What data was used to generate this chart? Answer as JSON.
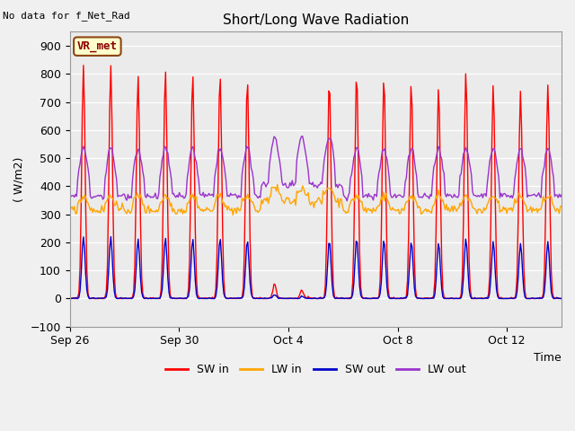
{
  "title": "Short/Long Wave Radiation",
  "ylabel": "( W/m2)",
  "xlabel": "Time",
  "top_label": "No data for f_Net_Rad",
  "station_label": "VR_met",
  "ylim": [
    -100,
    950
  ],
  "yticks": [
    -100,
    0,
    100,
    200,
    300,
    400,
    500,
    600,
    700,
    800,
    900
  ],
  "fig_bg_color": "#f0f0f0",
  "plot_bg_color": "#ebebeb",
  "sw_in_color": "#ff0000",
  "lw_in_color": "#ffa500",
  "sw_out_color": "#0000cc",
  "lw_out_color": "#9933cc",
  "line_width": 1.0,
  "legend_labels": [
    "SW in",
    "LW in",
    "SW out",
    "LW out"
  ],
  "x_tick_labels": [
    "Sep 26",
    "Sep 30",
    "Oct 4",
    "Oct 8",
    "Oct 12"
  ],
  "x_tick_positions": [
    0,
    4,
    8,
    12,
    16
  ],
  "n_days": 18
}
